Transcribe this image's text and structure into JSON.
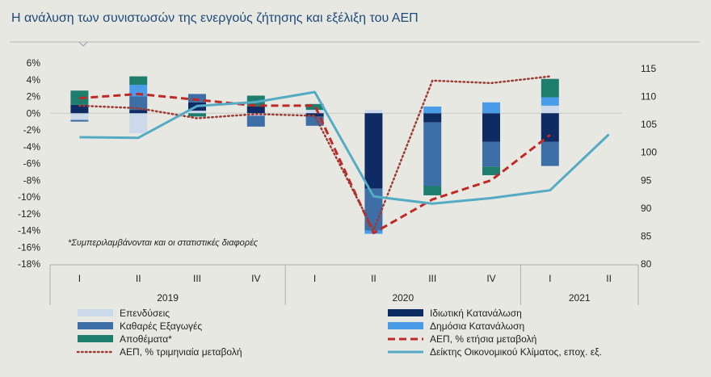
{
  "title": "Η ανάλυση  των συνιστωσών  της ενεργούς ζήτησης  και εξέλιξη του ΑΕΠ",
  "note": "*Συμπεριλαμβάνονται και οι στατιστικές διαφορές",
  "colors": {
    "investment": "#ccd9ea",
    "private": "#0f2b63",
    "net_exports": "#3e6ea6",
    "public": "#4a9be8",
    "inventories": "#1e7e6e",
    "gdp_yoy": "#c02a26",
    "gdp_qoq": "#9e3b35",
    "climate": "#55abc3"
  },
  "chart_data": {
    "type": "bar",
    "quarters": [
      "I",
      "II",
      "III",
      "IV",
      "I",
      "II",
      "III",
      "IV",
      "I",
      "II"
    ],
    "years": [
      "2019",
      "2020",
      "2021"
    ],
    "y_left_ticks": [
      "6%",
      "4%",
      "2%",
      "0%",
      "-2%",
      "-4%",
      "-6%",
      "-8%",
      "-10%",
      "-12%",
      "-14%",
      "-16%",
      "-18%"
    ],
    "y_right_ticks": [
      "115",
      "110",
      "105",
      "100",
      "95",
      "90",
      "85",
      "80"
    ],
    "ylim_left": [
      -18,
      6
    ],
    "ylim_right": [
      80,
      116
    ],
    "series": [
      {
        "name": "Επενδύσεις",
        "key": "investment",
        "values": [
          -0.8,
          -2.4,
          0.3,
          -0.3,
          0.4,
          0.4,
          null,
          null,
          0.9,
          null
        ]
      },
      {
        "name": "Ιδιωτική Κατανάλωση",
        "key": "private",
        "values": [
          1.0,
          0.4,
          1.0,
          0.8,
          -0.4,
          -9.0,
          -1.1,
          -3.4,
          -3.4,
          null
        ]
      },
      {
        "name": "Καθαρές Εξαγωγές",
        "key": "net_exports",
        "values": [
          -0.2,
          1.6,
          1.0,
          -1.3,
          -1.1,
          -5.0,
          -7.6,
          -3.0,
          -2.9,
          null
        ]
      },
      {
        "name": "Δημόσια Κατανάλωση",
        "key": "public",
        "values": [
          null,
          1.4,
          null,
          null,
          null,
          -0.4,
          0.8,
          1.3,
          1.0,
          null
        ]
      },
      {
        "name": "Αποθέματα*",
        "key": "inventories",
        "values": [
          1.7,
          1.0,
          -0.4,
          1.3,
          0.7,
          null,
          -1.1,
          -1.0,
          2.2,
          null
        ]
      }
    ],
    "lines": [
      {
        "name": "ΑΕΠ, % ετήσια μεταβολή",
        "key": "gdp_yoy",
        "axis": "left",
        "style": "dashed",
        "values": [
          1.8,
          2.3,
          1.6,
          0.9,
          0.9,
          -14.3,
          -10.3,
          -8.0,
          -2.6,
          null
        ]
      },
      {
        "name": "ΑΕΠ, % τριμηνιαία μεταβολή",
        "key": "gdp_qoq",
        "axis": "left",
        "style": "dotted",
        "values": [
          0.9,
          0.6,
          -0.6,
          -0.1,
          -0.3,
          -14.0,
          3.9,
          3.6,
          4.4,
          null
        ]
      },
      {
        "name": "Δείκτης Οικονομικού Κλίματος, εποχ. εξ.",
        "key": "climate",
        "axis": "right",
        "style": "solid",
        "values": [
          102.7,
          102.6,
          108.3,
          109.0,
          110.8,
          92.1,
          90.8,
          91.8,
          93.2,
          103.2
        ]
      }
    ],
    "legend": {
      "position": "bottom",
      "items": [
        {
          "label": "Επενδύσεις",
          "key": "investment",
          "kind": "box"
        },
        {
          "label": "Ιδιωτική Κατανάλωση",
          "key": "private",
          "kind": "box"
        },
        {
          "label": "Καθαρές Εξαγωγές",
          "key": "net_exports",
          "kind": "box"
        },
        {
          "label": "Δημόσια Κατανάλωση",
          "key": "public",
          "kind": "box"
        },
        {
          "label": "Αποθέματα*",
          "key": "inventories",
          "kind": "box"
        },
        {
          "label": "ΑΕΠ, % ετήσια μεταβολή",
          "key": "gdp_yoy",
          "kind": "dashed"
        },
        {
          "label": "ΑΕΠ, % τριμηνιαία μεταβολή",
          "key": "gdp_qoq",
          "kind": "dotted"
        },
        {
          "label": "Δείκτης Οικονομικού Κλίματος, εποχ. εξ.",
          "key": "climate",
          "kind": "solid"
        }
      ]
    }
  }
}
